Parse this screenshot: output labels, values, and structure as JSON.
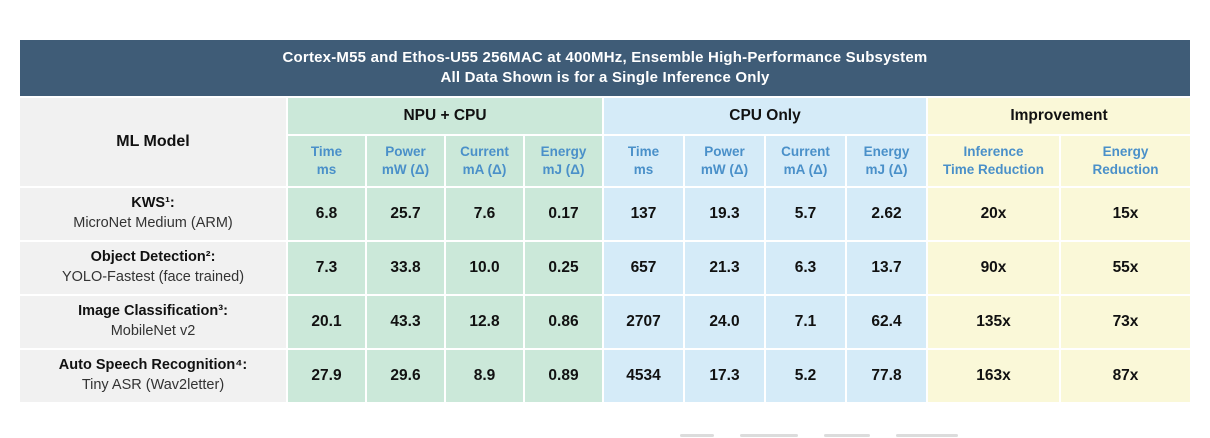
{
  "title": {
    "line1": "Cortex-M55 and Ethos-U55 256MAC at 400MHz, Ensemble High-Performance Subsystem",
    "line2": "All Data Shown is for a Single Inference Only"
  },
  "colors": {
    "header_bg": "#3f5c77",
    "header_text": "#ffffff",
    "npu_cpu_bg": "#cbe8d9",
    "cpu_only_bg": "#d5ebf8",
    "improvement_bg": "#faf8d8",
    "model_col_bg": "#f1f1f1",
    "subheader_text": "#4a90c9",
    "value_text": "#111111"
  },
  "table": {
    "model_header": "ML Model",
    "groups": {
      "npu": "NPU + CPU",
      "cpu": "CPU Only",
      "imp": "Improvement"
    },
    "subcols": {
      "npu": [
        {
          "l1": "Time",
          "l2": "ms"
        },
        {
          "l1": "Power",
          "l2": "mW (Δ)"
        },
        {
          "l1": "Current",
          "l2": "mA (Δ)"
        },
        {
          "l1": "Energy",
          "l2": "mJ (Δ)"
        }
      ],
      "cpu": [
        {
          "l1": "Time",
          "l2": "ms"
        },
        {
          "l1": "Power",
          "l2": "mW (Δ)"
        },
        {
          "l1": "Current",
          "l2": "mA (Δ)"
        },
        {
          "l1": "Energy",
          "l2": "mJ (Δ)"
        }
      ],
      "imp": [
        {
          "l1": "Inference",
          "l2": "Time Reduction"
        },
        {
          "l1": "Energy",
          "l2": "Reduction"
        }
      ]
    },
    "rows": [
      {
        "m1": "KWS¹:",
        "m2": "MicroNet Medium (ARM)",
        "v": [
          "6.8",
          "25.7",
          "7.6",
          "0.17",
          "137",
          "19.3",
          "5.7",
          "2.62",
          "20x",
          "15x"
        ]
      },
      {
        "m1": "Object Detection²:",
        "m2": "YOLO-Fastest (face trained)",
        "v": [
          "7.3",
          "33.8",
          "10.0",
          "0.25",
          "657",
          "21.3",
          "6.3",
          "13.7",
          "90x",
          "55x"
        ]
      },
      {
        "m1": "Image Classification³:",
        "m2": "MobileNet v2",
        "v": [
          "20.1",
          "43.3",
          "12.8",
          "0.86",
          "2707",
          "24.0",
          "7.1",
          "62.4",
          "135x",
          "73x"
        ]
      },
      {
        "m1": "Auto Speech Recognition⁴:",
        "m2": "Tiny ASR (Wav2letter)",
        "v": [
          "27.9",
          "29.6",
          "8.9",
          "0.89",
          "4534",
          "17.3",
          "5.2",
          "77.8",
          "163x",
          "87x"
        ]
      }
    ]
  },
  "chart_data": {
    "type": "table",
    "title": "Cortex-M55 and Ethos-U55 256MAC at 400MHz, Ensemble High-Performance Subsystem",
    "subtitle": "All Data Shown is for a Single Inference Only",
    "column_groups": [
      "ML Model",
      "NPU + CPU",
      "CPU Only",
      "Improvement"
    ],
    "columns": [
      "ML Model",
      "NPU+CPU Time ms",
      "NPU+CPU Power mW (Δ)",
      "NPU+CPU Current mA (Δ)",
      "NPU+CPU Energy mJ (Δ)",
      "CPU Only Time ms",
      "CPU Only Power mW (Δ)",
      "CPU Only Current mA (Δ)",
      "CPU Only Energy mJ (Δ)",
      "Inference Time Reduction",
      "Energy Reduction"
    ],
    "rows": [
      [
        "KWS¹: MicroNet Medium (ARM)",
        6.8,
        25.7,
        7.6,
        0.17,
        137,
        19.3,
        5.7,
        2.62,
        "20x",
        "15x"
      ],
      [
        "Object Detection²: YOLO-Fastest (face trained)",
        7.3,
        33.8,
        10.0,
        0.25,
        657,
        21.3,
        6.3,
        13.7,
        "90x",
        "55x"
      ],
      [
        "Image Classification³: MobileNet v2",
        20.1,
        43.3,
        12.8,
        0.86,
        2707,
        24.0,
        7.1,
        62.4,
        "135x",
        "73x"
      ],
      [
        "Auto Speech Recognition⁴: Tiny ASR (Wav2letter)",
        27.9,
        29.6,
        8.9,
        0.89,
        4534,
        17.3,
        5.2,
        77.8,
        "163x",
        "87x"
      ]
    ]
  }
}
